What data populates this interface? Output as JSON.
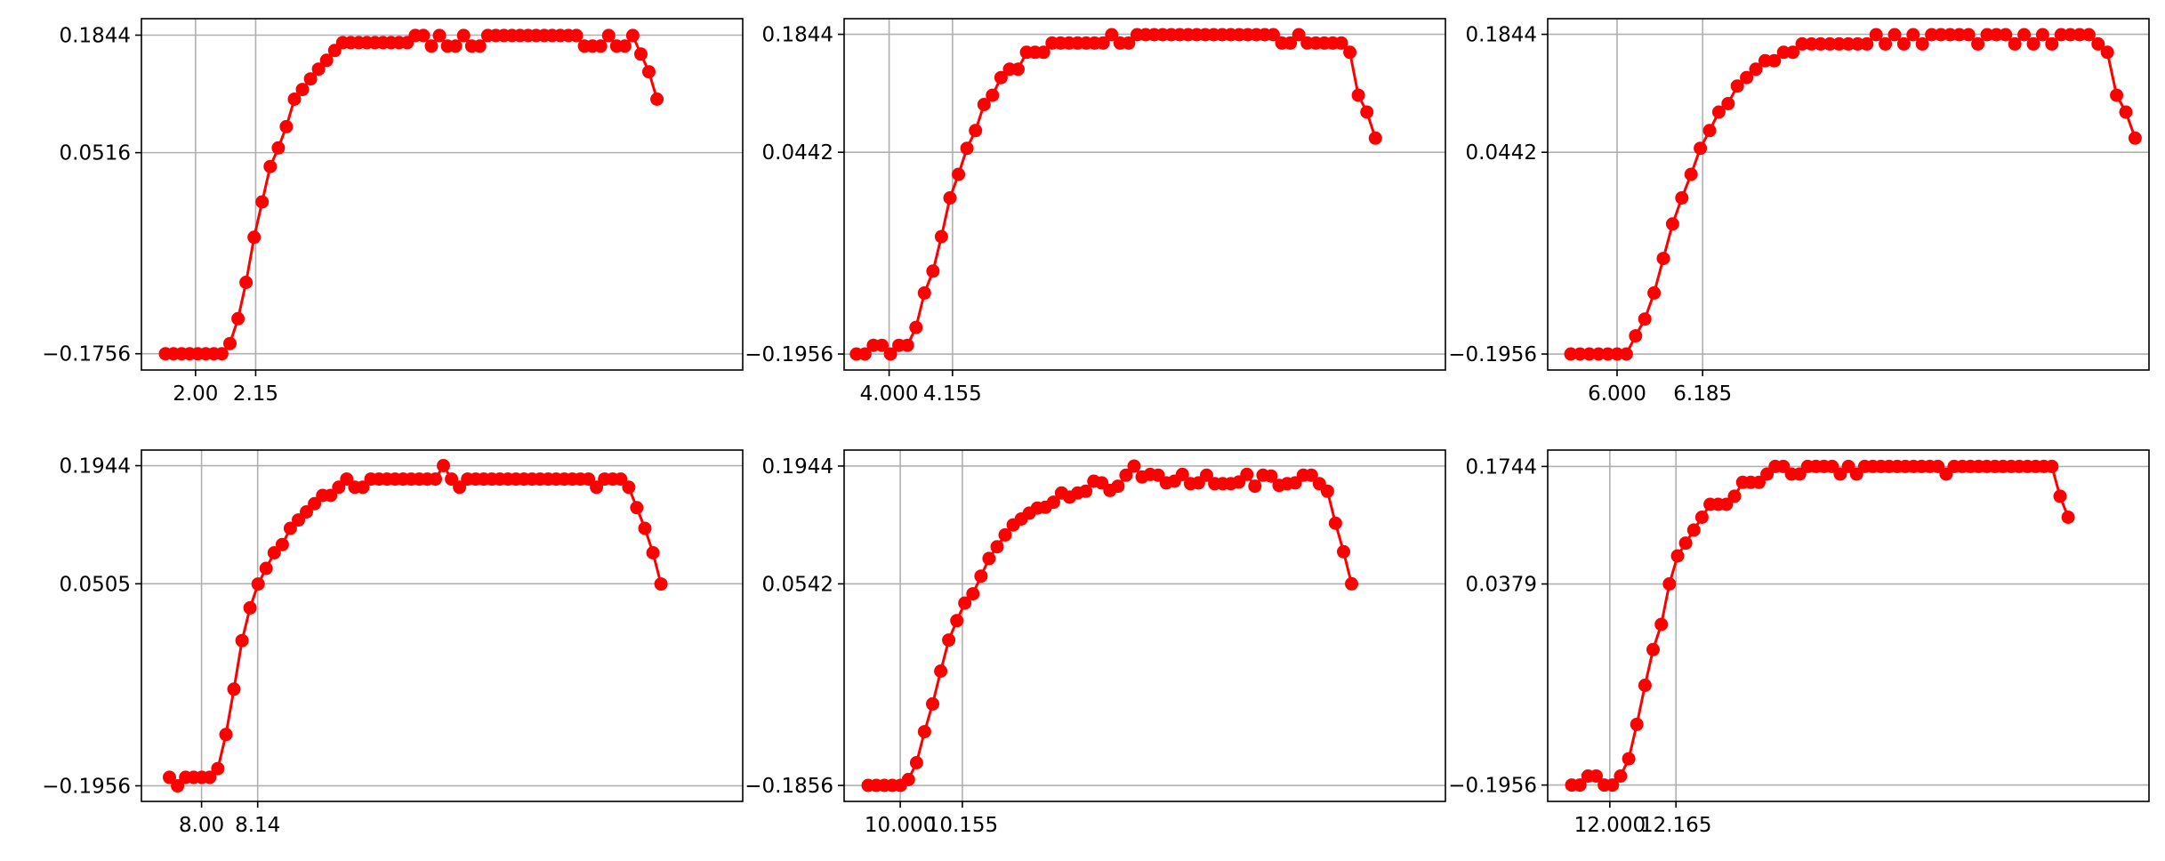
{
  "chart_data": [
    {
      "type": "line",
      "title": "",
      "xlabel": "",
      "ylabel": "",
      "marker": "circle",
      "grid": true,
      "xlim": [
        1.865,
        3.365
      ],
      "ylim": [
        -0.194,
        0.203
      ],
      "xticks": [
        {
          "value": 2.0,
          "label": "2.00"
        },
        {
          "value": 2.15,
          "label": "2.15"
        }
      ],
      "yticks": [
        {
          "value": -0.1756,
          "label": "−0.1756"
        },
        {
          "value": 0.0516,
          "label": "0.0516"
        },
        {
          "value": 0.1844,
          "label": "0.1844"
        }
      ],
      "series": [
        {
          "name": "",
          "x_start": 1.925,
          "x_step": 0.0201,
          "values": [
            -0.1756,
            -0.1756,
            -0.1756,
            -0.1756,
            -0.1756,
            -0.1756,
            -0.1756,
            -0.1756,
            -0.164,
            -0.136,
            -0.095,
            -0.044,
            -0.004,
            0.036,
            0.057,
            0.081,
            0.112,
            0.123,
            0.135,
            0.146,
            0.156,
            0.167,
            0.176,
            0.176,
            0.176,
            0.176,
            0.176,
            0.176,
            0.176,
            0.176,
            0.176,
            0.184,
            0.184,
            0.172,
            0.184,
            0.172,
            0.172,
            0.184,
            0.172,
            0.172,
            0.184,
            0.184,
            0.184,
            0.184,
            0.184,
            0.184,
            0.184,
            0.184,
            0.184,
            0.184,
            0.184,
            0.184,
            0.172,
            0.172,
            0.172,
            0.184,
            0.172,
            0.172,
            0.184,
            0.163,
            0.143,
            0.112
          ]
        }
      ]
    },
    {
      "type": "line",
      "title": "",
      "xlabel": "",
      "ylabel": "",
      "marker": "circle",
      "grid": true,
      "xlim": [
        3.89,
        5.36
      ],
      "ylim": [
        -0.2146,
        0.203
      ],
      "xticks": [
        {
          "value": 4.0,
          "label": "4.000"
        },
        {
          "value": 4.155,
          "label": "4.155"
        }
      ],
      "yticks": [
        {
          "value": -0.1956,
          "label": "−0.1956"
        },
        {
          "value": 0.0442,
          "label": "0.0442"
        },
        {
          "value": 0.1844,
          "label": "0.1844"
        }
      ],
      "series": [
        {
          "name": "",
          "x_start": 3.92,
          "x_step": 0.0208,
          "values": [
            -0.1956,
            -0.1956,
            -0.1852,
            -0.1852,
            -0.1956,
            -0.1852,
            -0.1852,
            -0.164,
            -0.123,
            -0.097,
            -0.056,
            -0.01,
            0.018,
            0.049,
            0.07,
            0.101,
            0.112,
            0.133,
            0.143,
            0.143,
            0.163,
            0.163,
            0.163,
            0.174,
            0.174,
            0.174,
            0.174,
            0.174,
            0.174,
            0.174,
            0.184,
            0.174,
            0.174,
            0.184,
            0.184,
            0.184,
            0.184,
            0.184,
            0.184,
            0.184,
            0.184,
            0.184,
            0.184,
            0.184,
            0.184,
            0.184,
            0.184,
            0.184,
            0.184,
            0.184,
            0.174,
            0.174,
            0.184,
            0.174,
            0.174,
            0.174,
            0.174,
            0.174,
            0.163,
            0.112,
            0.092,
            0.061
          ]
        }
      ]
    },
    {
      "type": "line",
      "title": "",
      "xlabel": "",
      "ylabel": "",
      "marker": "circle",
      "grid": true,
      "xlim": [
        5.85,
        7.15
      ],
      "ylim": [
        -0.2146,
        0.203
      ],
      "xticks": [
        {
          "value": 6.0,
          "label": "6.000"
        },
        {
          "value": 6.185,
          "label": "6.185"
        }
      ],
      "yticks": [
        {
          "value": -0.1956,
          "label": "−0.1956"
        },
        {
          "value": 0.0442,
          "label": "0.0442"
        },
        {
          "value": 0.1844,
          "label": "0.1844"
        }
      ],
      "series": [
        {
          "name": "",
          "x_start": 5.9,
          "x_step": 0.02,
          "values": [
            -0.1956,
            -0.1956,
            -0.1956,
            -0.1956,
            -0.1956,
            -0.1956,
            -0.1956,
            -0.174,
            -0.154,
            -0.123,
            -0.082,
            -0.041,
            -0.01,
            0.018,
            0.049,
            0.07,
            0.092,
            0.102,
            0.123,
            0.133,
            0.143,
            0.153,
            0.153,
            0.163,
            0.163,
            0.173,
            0.173,
            0.173,
            0.173,
            0.173,
            0.173,
            0.173,
            0.173,
            0.184,
            0.173,
            0.184,
            0.173,
            0.184,
            0.173,
            0.184,
            0.184,
            0.184,
            0.184,
            0.184,
            0.173,
            0.184,
            0.184,
            0.184,
            0.173,
            0.184,
            0.173,
            0.184,
            0.173,
            0.184,
            0.184,
            0.184,
            0.184,
            0.173,
            0.163,
            0.112,
            0.092,
            0.061
          ]
        }
      ]
    },
    {
      "type": "line",
      "title": "",
      "xlabel": "",
      "ylabel": "",
      "marker": "circle",
      "grid": true,
      "xlim": [
        7.85,
        9.35
      ],
      "ylim": [
        -0.2146,
        0.2134
      ],
      "xticks": [
        {
          "value": 8.0,
          "label": "8.00"
        },
        {
          "value": 8.14,
          "label": "8.14"
        }
      ],
      "yticks": [
        {
          "value": -0.1956,
          "label": "−0.1956"
        },
        {
          "value": 0.0505,
          "label": "0.0505"
        },
        {
          "value": 0.1944,
          "label": "0.1944"
        }
      ],
      "series": [
        {
          "name": "",
          "x_start": 7.92,
          "x_step": 0.0201,
          "values": [
            -0.1852,
            -0.1956,
            -0.1852,
            -0.1852,
            -0.1852,
            -0.1852,
            -0.1746,
            -0.1331,
            -0.0779,
            -0.0187,
            0.0212,
            0.0502,
            0.0693,
            0.0883,
            0.0983,
            0.1181,
            0.1282,
            0.1381,
            0.1481,
            0.1581,
            0.1581,
            0.1681,
            0.1781,
            0.1681,
            0.1681,
            0.1781,
            0.1781,
            0.1781,
            0.1781,
            0.1781,
            0.1781,
            0.1781,
            0.1781,
            0.1781,
            0.1944,
            0.1781,
            0.1681,
            0.1781,
            0.1781,
            0.1781,
            0.1781,
            0.1781,
            0.1781,
            0.1781,
            0.1781,
            0.1781,
            0.1781,
            0.1781,
            0.1781,
            0.1781,
            0.1781,
            0.1781,
            0.1781,
            0.1681,
            0.1781,
            0.1781,
            0.1781,
            0.1681,
            0.1432,
            0.1181,
            0.0883,
            0.0502
          ]
        }
      ]
    },
    {
      "type": "line",
      "title": "",
      "xlabel": "",
      "ylabel": "",
      "marker": "circle",
      "grid": true,
      "xlim": [
        9.86,
        11.36
      ],
      "ylim": [
        -0.2046,
        0.2134
      ],
      "xticks": [
        {
          "value": 10.0,
          "label": "10.000"
        },
        {
          "value": 10.155,
          "label": "10.155"
        }
      ],
      "yticks": [
        {
          "value": -0.1856,
          "label": "−0.1856"
        },
        {
          "value": 0.0542,
          "label": "0.0542"
        },
        {
          "value": 0.1944,
          "label": "0.1944"
        }
      ],
      "series": [
        {
          "name": "",
          "x_start": 9.92,
          "x_step": 0.0201,
          "values": [
            -0.1856,
            -0.1856,
            -0.1856,
            -0.1856,
            -0.1856,
            -0.1786,
            -0.1586,
            -0.1216,
            -0.0886,
            -0.0496,
            -0.0126,
            0.0104,
            0.0314,
            0.0424,
            0.0634,
            0.0844,
            0.0984,
            0.1124,
            0.1244,
            0.1314,
            0.1384,
            0.1444,
            0.1454,
            0.1514,
            0.1624,
            0.1574,
            0.1624,
            0.1644,
            0.1764,
            0.1744,
            0.1654,
            0.1704,
            0.1834,
            0.1944,
            0.1814,
            0.1844,
            0.1834,
            0.1744,
            0.1764,
            0.1844,
            0.1734,
            0.1744,
            0.1834,
            0.1734,
            0.1734,
            0.1734,
            0.1754,
            0.1844,
            0.1704,
            0.1834,
            0.1824,
            0.1714,
            0.1734,
            0.1744,
            0.1834,
            0.1834,
            0.1734,
            0.1644,
            0.1264,
            0.0924,
            0.0542
          ]
        }
      ]
    },
    {
      "type": "line",
      "title": "",
      "xlabel": "",
      "ylabel": "",
      "marker": "circle",
      "grid": true,
      "xlim": [
        11.845,
        13.345
      ],
      "ylim": [
        -0.2146,
        0.1934
      ],
      "xticks": [
        {
          "value": 12.0,
          "label": "12.000"
        },
        {
          "value": 12.165,
          "label": "12.165"
        }
      ],
      "yticks": [
        {
          "value": -0.1956,
          "label": "−0.1956"
        },
        {
          "value": 0.0379,
          "label": "0.0379"
        },
        {
          "value": 0.1744,
          "label": "0.1744"
        }
      ],
      "series": [
        {
          "name": "",
          "x_start": 11.905,
          "x_step": 0.0203,
          "values": [
            -0.1956,
            -0.1956,
            -0.1852,
            -0.1852,
            -0.1956,
            -0.1956,
            -0.1852,
            -0.1651,
            -0.1251,
            -0.0798,
            -0.0383,
            -0.0091,
            0.0379,
            0.0705,
            0.0854,
            0.1005,
            0.1154,
            0.1304,
            0.1304,
            0.1304,
            0.1398,
            0.1559,
            0.1559,
            0.1559,
            0.1655,
            0.1744,
            0.1744,
            0.1655,
            0.1655,
            0.1744,
            0.1744,
            0.1744,
            0.1744,
            0.1655,
            0.1744,
            0.1655,
            0.1744,
            0.1744,
            0.1744,
            0.1744,
            0.1744,
            0.1744,
            0.1744,
            0.1744,
            0.1744,
            0.1744,
            0.1655,
            0.1744,
            0.1744,
            0.1744,
            0.1744,
            0.1744,
            0.1744,
            0.1744,
            0.1744,
            0.1744,
            0.1744,
            0.1744,
            0.1744,
            0.1744,
            0.1398,
            0.1154
          ]
        }
      ]
    }
  ],
  "style": {
    "line_color": "#ff0000",
    "grid_color": "#b0b0b0",
    "frame_color": "#000000"
  }
}
